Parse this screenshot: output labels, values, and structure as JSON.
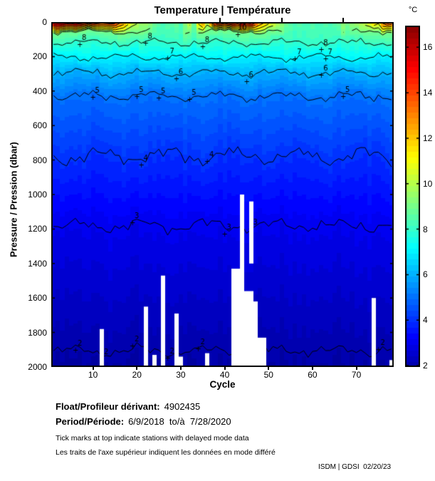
{
  "title": "Temperature | Température",
  "axes": {
    "xlabel": "Cycle",
    "ylabel": "Pressure / Pression (dbar)"
  },
  "colorbar": {
    "unit_label": "°C",
    "ticks": [
      2,
      4,
      6,
      8,
      10,
      12,
      14,
      16
    ],
    "bottom_value": 1.94,
    "top_value": 16.95
  },
  "footer": {
    "float_label": "Float/Profileur dérivant:",
    "float_value": "4902435",
    "period_label": "Period/Période:",
    "period_value": "6/9/2018  to/à  7/28/2020",
    "note_en": "Tick marks at top indicate stations with delayed mode data",
    "note_fr": "Les traits de l'axe supérieur indiquent les données en mode différé",
    "credit": "ISDM | GDSI  02/20/23"
  },
  "chart_data": {
    "type": "heatmap",
    "subtype": "filled-contour-section",
    "title": "Temperature | Température",
    "xlabel": "Cycle",
    "ylabel": "Pressure / Pression (dbar)",
    "cycles": 78,
    "x_range": [
      1,
      78
    ],
    "x_ticks": [
      10,
      20,
      30,
      40,
      50,
      60,
      70
    ],
    "depth_max": 2000,
    "y_ticks": [
      0,
      200,
      400,
      600,
      800,
      1000,
      1200,
      1400,
      1600,
      1800,
      2000
    ],
    "caxis": [
      1.3,
      17.0
    ],
    "bottom_temp": 1.8,
    "warm_layer": {
      "base": 55,
      "wiggle": 18
    },
    "isotherms": [
      {
        "t": 8,
        "depth": 118,
        "wiggle": 26
      },
      {
        "t": 7,
        "depth": 205,
        "wiggle": 24
      },
      {
        "t": 6,
        "depth": 295,
        "wiggle": 30
      },
      {
        "t": 5,
        "depth": 430,
        "wiggle": 34
      },
      {
        "t": 4,
        "depth": 775,
        "wiggle": 60
      },
      {
        "t": 3,
        "depth": 1180,
        "wiggle": 48
      },
      {
        "t": 2,
        "depth": 1905,
        "wiggle": 38
      }
    ],
    "surface_temp_by_cycle": [
      16.6,
      16.8,
      17.0,
      16.4,
      16.2,
      16.6,
      16.3,
      16.0,
      15.6,
      15.8,
      15.2,
      14.6,
      14.9,
      15.3,
      14.8,
      13.6,
      12.8,
      11.6,
      10.6,
      10.2,
      9.6,
      9.8,
      9.4,
      8.9,
      8.6,
      8.4,
      8.6,
      8.5,
      8.8,
      8.4,
      9.2,
      10.4,
      8.9,
      11.5,
      13.0,
      10.5,
      14.0,
      15.5,
      16.2,
      15.0,
      16.4,
      16.0,
      15.2,
      16.6,
      15.8,
      16.2,
      14.4,
      13.0,
      12.2,
      11.6,
      10.8,
      10.0,
      9.4,
      8.9,
      8.6,
      8.4,
      8.5,
      8.3,
      8.4,
      8.6,
      8.4,
      8.3,
      8.5,
      8.4,
      8.6,
      8.9,
      9.3,
      9.1,
      9.5,
      9.7,
      10.0,
      10.5,
      11.0,
      12.0,
      11.4,
      13.5,
      14.8,
      14.2
    ],
    "contour_labels": [
      {
        "t": 10,
        "cycle": 44
      },
      {
        "t": 8,
        "cycle": 8
      },
      {
        "t": 8,
        "cycle": 23
      },
      {
        "t": 8,
        "cycle": 36
      },
      {
        "t": 8,
        "cycle": 63
      },
      {
        "t": 7,
        "cycle": 28
      },
      {
        "t": 7,
        "cycle": 57
      },
      {
        "t": 7,
        "cycle": 64
      },
      {
        "t": 6,
        "cycle": 30
      },
      {
        "t": 6,
        "cycle": 46
      },
      {
        "t": 6,
        "cycle": 63
      },
      {
        "t": 5,
        "cycle": 11
      },
      {
        "t": 5,
        "cycle": 21
      },
      {
        "t": 5,
        "cycle": 26
      },
      {
        "t": 5,
        "cycle": 33
      },
      {
        "t": 5,
        "cycle": 68
      },
      {
        "t": 4,
        "cycle": 22
      },
      {
        "t": 4,
        "cycle": 37
      },
      {
        "t": 3,
        "cycle": 20
      },
      {
        "t": 3,
        "cycle": 41
      },
      {
        "t": 3,
        "cycle": 47
      },
      {
        "t": 2,
        "cycle": 7
      },
      {
        "t": 2,
        "cycle": 13
      },
      {
        "t": 2,
        "cycle": 20
      },
      {
        "t": 2,
        "cycle": 28
      },
      {
        "t": 2,
        "cycle": 35
      },
      {
        "t": 2,
        "cycle": 76
      }
    ],
    "missing_data": [
      {
        "cycle": 12,
        "from_dbar": 1780,
        "to_dbar": 2000
      },
      {
        "cycle": 22,
        "from_dbar": 1650,
        "to_dbar": 2000
      },
      {
        "cycle": 24,
        "from_dbar": 1930,
        "to_dbar": 2000
      },
      {
        "cycle": 26,
        "from_dbar": 1470,
        "to_dbar": 2000
      },
      {
        "cycle": 29,
        "from_dbar": 1690,
        "to_dbar": 2000
      },
      {
        "cycle": 30,
        "from_dbar": 1940,
        "to_dbar": 2000
      },
      {
        "cycle": 36,
        "from_dbar": 1920,
        "to_dbar": 2000
      },
      {
        "cycle": 42,
        "from_dbar": 1430,
        "to_dbar": 2000
      },
      {
        "cycle": 43,
        "from_dbar": 1430,
        "to_dbar": 2000
      },
      {
        "cycle": 44,
        "from_dbar": 1000,
        "to_dbar": 2000
      },
      {
        "cycle": 45,
        "from_dbar": 1560,
        "to_dbar": 2000
      },
      {
        "cycle": 46,
        "from_dbar": 1040,
        "to_dbar": 1400
      },
      {
        "cycle": 46,
        "from_dbar": 1560,
        "to_dbar": 2000
      },
      {
        "cycle": 47,
        "from_dbar": 1620,
        "to_dbar": 2000
      },
      {
        "cycle": 48,
        "from_dbar": 1830,
        "to_dbar": 2000
      },
      {
        "cycle": 49,
        "from_dbar": 1830,
        "to_dbar": 2000
      },
      {
        "cycle": 74,
        "from_dbar": 1600,
        "to_dbar": 2000
      },
      {
        "cycle": 78,
        "from_dbar": 1960,
        "to_dbar": 2000
      }
    ],
    "delayed_mode_tick_cycles": [
      39,
      53,
      67
    ],
    "legend_position": "right-colorbar",
    "grid": false
  }
}
